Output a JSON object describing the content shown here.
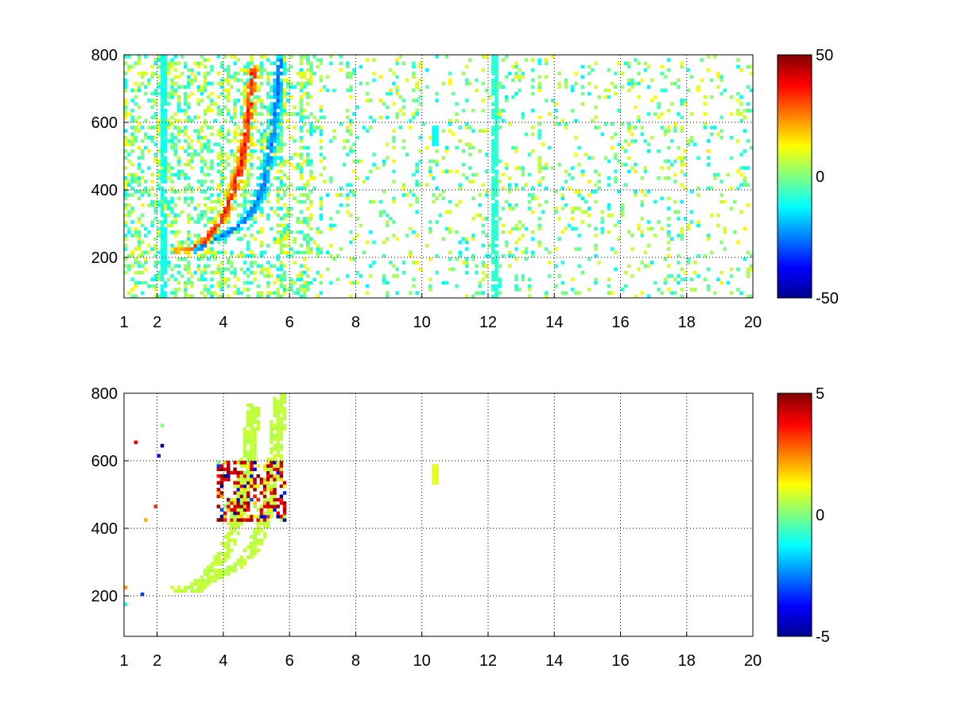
{
  "chart_data": [
    {
      "type": "heatmap",
      "title": "",
      "xlabel": "",
      "ylabel": "",
      "xlim": [
        1,
        20
      ],
      "ylim": [
        80,
        800
      ],
      "xticks": [
        1,
        2,
        4,
        6,
        8,
        10,
        12,
        14,
        16,
        18,
        20
      ],
      "yticks": [
        200,
        400,
        600,
        800
      ],
      "grid": true,
      "colormap": "jet",
      "colorbar": {
        "clim": [
          -50,
          50
        ],
        "ticks": [
          50,
          0,
          -50
        ]
      },
      "features": [
        {
          "kind": "ridge",
          "sign": "positive",
          "peak_value": 40,
          "path": [
            [
              2.6,
              220
            ],
            [
              3.0,
              222
            ],
            [
              3.4,
              245
            ],
            [
              3.8,
              290
            ],
            [
              4.1,
              340
            ],
            [
              4.3,
              400
            ],
            [
              4.5,
              460
            ],
            [
              4.65,
              540
            ],
            [
              4.8,
              640
            ],
            [
              4.9,
              760
            ]
          ]
        },
        {
          "kind": "ridge",
          "sign": "negative",
          "peak_value": -30,
          "path": [
            [
              3.2,
              220
            ],
            [
              3.6,
              250
            ],
            [
              4.0,
              265
            ],
            [
              4.5,
              295
            ],
            [
              4.9,
              340
            ],
            [
              5.2,
              410
            ],
            [
              5.4,
              500
            ],
            [
              5.55,
              600
            ],
            [
              5.65,
              700
            ],
            [
              5.7,
              790
            ]
          ]
        },
        {
          "kind": "band",
          "x": 2.2,
          "value": -10
        },
        {
          "kind": "band",
          "x": 12.2,
          "value": -8
        },
        {
          "kind": "spot",
          "x": 10.45,
          "y": 560,
          "value": -12
        }
      ]
    },
    {
      "type": "heatmap",
      "title": "",
      "xlabel": "",
      "ylabel": "",
      "xlim": [
        1,
        20
      ],
      "ylim": [
        80,
        800
      ],
      "xticks": [
        1,
        2,
        4,
        6,
        8,
        10,
        12,
        14,
        16,
        18,
        20
      ],
      "yticks": [
        200,
        400,
        600,
        800
      ],
      "grid": true,
      "colormap": "jet",
      "colorbar": {
        "clim": [
          -5,
          5
        ],
        "ticks": [
          5,
          0,
          -5
        ]
      },
      "features": [
        {
          "kind": "ridge",
          "sign": "near-zero",
          "peak_value": 0.8,
          "path": [
            [
              2.6,
              220
            ],
            [
              3.0,
              222
            ],
            [
              3.4,
              245
            ],
            [
              3.8,
              290
            ],
            [
              4.1,
              340
            ],
            [
              4.3,
              400
            ],
            [
              4.5,
              460
            ],
            [
              4.65,
              540
            ],
            [
              4.8,
              640
            ],
            [
              4.9,
              760
            ]
          ]
        },
        {
          "kind": "ridge",
          "sign": "near-zero",
          "peak_value": 0.8,
          "path": [
            [
              3.2,
              220
            ],
            [
              3.6,
              250
            ],
            [
              4.0,
              265
            ],
            [
              4.5,
              295
            ],
            [
              4.9,
              340
            ],
            [
              5.2,
              410
            ],
            [
              5.4,
              500
            ],
            [
              5.55,
              600
            ],
            [
              5.65,
              700
            ],
            [
              5.7,
              790
            ]
          ]
        },
        {
          "kind": "cluster",
          "x_range": [
            3.8,
            5.9
          ],
          "y_range": [
            420,
            600
          ],
          "value_range": [
            -5,
            5
          ]
        },
        {
          "kind": "spot",
          "x": 10.45,
          "y": 560,
          "value": 1
        }
      ]
    }
  ]
}
